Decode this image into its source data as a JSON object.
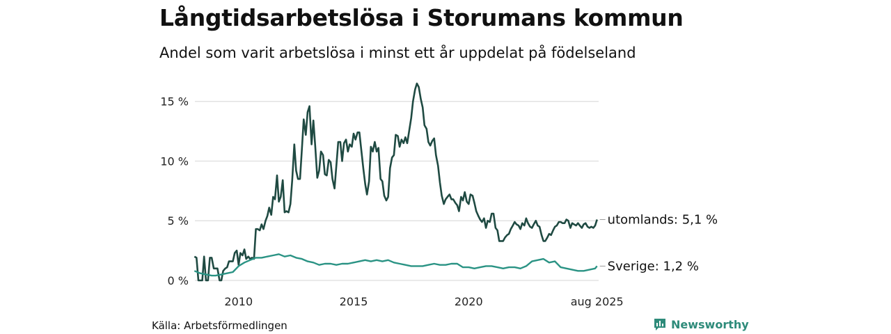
{
  "title": "Långtidsarbetslösa i Storumans kommun",
  "subtitle": "Andel som varit arbetslösa i minst ett år uppdelat på födelseland",
  "source": "Källa: Arbetsförmedlingen",
  "brand": "Newsworthy",
  "colors": {
    "utomlands": "#1f4a42",
    "sverige": "#2a9384",
    "grid": "#dddddd",
    "brand": "#2e8b7a"
  },
  "chart_data": {
    "type": "line",
    "xlim": [
      2008.1,
      2025.65
    ],
    "ylim": [
      0,
      16.5
    ],
    "y_ticks": [
      {
        "value": 0,
        "label": "0 %"
      },
      {
        "value": 5,
        "label": "5 %"
      },
      {
        "value": 10,
        "label": "10 %"
      },
      {
        "value": 15,
        "label": "15 %"
      }
    ],
    "x_ticks": [
      {
        "value": 2010,
        "label": "2010"
      },
      {
        "value": 2015,
        "label": "2015"
      },
      {
        "value": 2020,
        "label": "2020"
      },
      {
        "value": 2025.58,
        "label": "aug 2025"
      }
    ],
    "series": [
      {
        "name": "utomlands",
        "end_label": "utomlands: 5,1 %",
        "points": [
          [
            2008.08,
            2.0
          ],
          [
            2008.17,
            1.9
          ],
          [
            2008.25,
            0.0
          ],
          [
            2008.33,
            0.0
          ],
          [
            2008.42,
            0.0
          ],
          [
            2008.5,
            2.0
          ],
          [
            2008.58,
            0.0
          ],
          [
            2008.67,
            0.0
          ],
          [
            2008.75,
            1.9
          ],
          [
            2008.83,
            1.9
          ],
          [
            2008.92,
            1.0
          ],
          [
            2009.0,
            1.0
          ],
          [
            2009.08,
            1.0
          ],
          [
            2009.17,
            0.0
          ],
          [
            2009.25,
            0.0
          ],
          [
            2009.33,
            0.8
          ],
          [
            2009.42,
            1.0
          ],
          [
            2009.5,
            1.1
          ],
          [
            2009.58,
            1.6
          ],
          [
            2009.67,
            1.6
          ],
          [
            2009.75,
            1.6
          ],
          [
            2009.83,
            2.3
          ],
          [
            2009.92,
            2.5
          ],
          [
            2010.0,
            1.3
          ],
          [
            2010.08,
            2.3
          ],
          [
            2010.17,
            2.1
          ],
          [
            2010.25,
            2.6
          ],
          [
            2010.33,
            1.8
          ],
          [
            2010.42,
            2.0
          ],
          [
            2010.5,
            1.8
          ],
          [
            2010.58,
            1.9
          ],
          [
            2010.67,
            1.8
          ],
          [
            2010.75,
            4.3
          ],
          [
            2010.83,
            4.3
          ],
          [
            2010.92,
            4.2
          ],
          [
            2011.0,
            4.7
          ],
          [
            2011.08,
            4.3
          ],
          [
            2011.17,
            5.0
          ],
          [
            2011.25,
            5.4
          ],
          [
            2011.33,
            6.1
          ],
          [
            2011.42,
            5.5
          ],
          [
            2011.5,
            7.0
          ],
          [
            2011.58,
            6.8
          ],
          [
            2011.67,
            8.8
          ],
          [
            2011.75,
            6.6
          ],
          [
            2011.83,
            7.0
          ],
          [
            2011.92,
            8.4
          ],
          [
            2012.0,
            5.7
          ],
          [
            2012.08,
            5.8
          ],
          [
            2012.17,
            5.7
          ],
          [
            2012.25,
            6.4
          ],
          [
            2012.33,
            8.4
          ],
          [
            2012.42,
            11.4
          ],
          [
            2012.5,
            9.2
          ],
          [
            2012.58,
            8.5
          ],
          [
            2012.67,
            8.5
          ],
          [
            2012.75,
            11.0
          ],
          [
            2012.83,
            13.5
          ],
          [
            2012.92,
            12.2
          ],
          [
            2013.0,
            14.1
          ],
          [
            2013.08,
            14.6
          ],
          [
            2013.17,
            11.4
          ],
          [
            2013.25,
            13.4
          ],
          [
            2013.33,
            11.3
          ],
          [
            2013.42,
            8.6
          ],
          [
            2013.5,
            9.2
          ],
          [
            2013.58,
            10.8
          ],
          [
            2013.67,
            10.5
          ],
          [
            2013.75,
            8.9
          ],
          [
            2013.83,
            8.8
          ],
          [
            2013.92,
            10.1
          ],
          [
            2014.0,
            9.9
          ],
          [
            2014.08,
            8.5
          ],
          [
            2014.17,
            7.7
          ],
          [
            2014.25,
            9.6
          ],
          [
            2014.33,
            11.6
          ],
          [
            2014.42,
            11.6
          ],
          [
            2014.5,
            10.0
          ],
          [
            2014.58,
            11.5
          ],
          [
            2014.67,
            11.8
          ],
          [
            2014.75,
            10.8
          ],
          [
            2014.83,
            11.4
          ],
          [
            2014.92,
            11.2
          ],
          [
            2015.0,
            12.3
          ],
          [
            2015.08,
            11.8
          ],
          [
            2015.17,
            12.4
          ],
          [
            2015.25,
            12.4
          ],
          [
            2015.33,
            11.0
          ],
          [
            2015.42,
            9.4
          ],
          [
            2015.5,
            8.1
          ],
          [
            2015.58,
            7.2
          ],
          [
            2015.67,
            8.3
          ],
          [
            2015.75,
            11.2
          ],
          [
            2015.83,
            10.8
          ],
          [
            2015.92,
            11.6
          ],
          [
            2016.0,
            10.8
          ],
          [
            2016.08,
            11.1
          ],
          [
            2016.17,
            8.5
          ],
          [
            2016.25,
            8.3
          ],
          [
            2016.33,
            7.1
          ],
          [
            2016.42,
            6.7
          ],
          [
            2016.5,
            7.0
          ],
          [
            2016.58,
            9.4
          ],
          [
            2016.67,
            10.3
          ],
          [
            2016.75,
            10.5
          ],
          [
            2016.83,
            12.2
          ],
          [
            2016.92,
            12.1
          ],
          [
            2017.0,
            11.2
          ],
          [
            2017.08,
            11.8
          ],
          [
            2017.17,
            11.5
          ],
          [
            2017.25,
            12.0
          ],
          [
            2017.33,
            11.5
          ],
          [
            2017.42,
            12.6
          ],
          [
            2017.5,
            13.6
          ],
          [
            2017.58,
            15.0
          ],
          [
            2017.67,
            16.0
          ],
          [
            2017.75,
            16.5
          ],
          [
            2017.83,
            16.2
          ],
          [
            2017.92,
            15.2
          ],
          [
            2018.0,
            14.5
          ],
          [
            2018.08,
            13.0
          ],
          [
            2018.17,
            12.7
          ],
          [
            2018.25,
            11.6
          ],
          [
            2018.33,
            11.3
          ],
          [
            2018.42,
            11.7
          ],
          [
            2018.5,
            11.9
          ],
          [
            2018.58,
            10.5
          ],
          [
            2018.67,
            9.6
          ],
          [
            2018.75,
            8.2
          ],
          [
            2018.83,
            7.1
          ],
          [
            2018.92,
            6.4
          ],
          [
            2019.0,
            6.8
          ],
          [
            2019.08,
            7.0
          ],
          [
            2019.17,
            7.2
          ],
          [
            2019.25,
            6.8
          ],
          [
            2019.33,
            6.8
          ],
          [
            2019.42,
            6.5
          ],
          [
            2019.5,
            6.3
          ],
          [
            2019.58,
            5.8
          ],
          [
            2019.67,
            7.0
          ],
          [
            2019.75,
            6.7
          ],
          [
            2019.83,
            7.4
          ],
          [
            2019.92,
            6.6
          ],
          [
            2020.0,
            6.4
          ],
          [
            2020.08,
            7.2
          ],
          [
            2020.17,
            7.1
          ],
          [
            2020.25,
            6.5
          ],
          [
            2020.33,
            5.8
          ],
          [
            2020.42,
            5.4
          ],
          [
            2020.5,
            5.1
          ],
          [
            2020.58,
            4.9
          ],
          [
            2020.67,
            5.2
          ],
          [
            2020.75,
            4.4
          ],
          [
            2020.83,
            5.0
          ],
          [
            2020.92,
            4.9
          ],
          [
            2021.0,
            5.6
          ],
          [
            2021.08,
            5.6
          ],
          [
            2021.17,
            4.4
          ],
          [
            2021.25,
            4.2
          ],
          [
            2021.33,
            3.3
          ],
          [
            2021.42,
            3.3
          ],
          [
            2021.5,
            3.3
          ],
          [
            2021.58,
            3.6
          ],
          [
            2021.67,
            3.8
          ],
          [
            2021.75,
            3.9
          ],
          [
            2021.83,
            4.3
          ],
          [
            2021.92,
            4.6
          ],
          [
            2022.0,
            4.9
          ],
          [
            2022.08,
            4.7
          ],
          [
            2022.17,
            4.6
          ],
          [
            2022.25,
            4.3
          ],
          [
            2022.33,
            4.8
          ],
          [
            2022.42,
            4.6
          ],
          [
            2022.5,
            5.2
          ],
          [
            2022.58,
            4.8
          ],
          [
            2022.67,
            4.5
          ],
          [
            2022.75,
            4.4
          ],
          [
            2022.83,
            4.7
          ],
          [
            2022.92,
            5.0
          ],
          [
            2023.0,
            4.6
          ],
          [
            2023.08,
            4.5
          ],
          [
            2023.17,
            3.8
          ],
          [
            2023.25,
            3.3
          ],
          [
            2023.33,
            3.3
          ],
          [
            2023.42,
            3.6
          ],
          [
            2023.5,
            3.9
          ],
          [
            2023.58,
            3.8
          ],
          [
            2023.67,
            4.2
          ],
          [
            2023.75,
            4.5
          ],
          [
            2023.83,
            4.6
          ],
          [
            2023.92,
            4.9
          ],
          [
            2024.0,
            4.9
          ],
          [
            2024.08,
            4.8
          ],
          [
            2024.17,
            4.8
          ],
          [
            2024.25,
            5.1
          ],
          [
            2024.33,
            5.0
          ],
          [
            2024.42,
            4.4
          ],
          [
            2024.5,
            4.8
          ],
          [
            2024.58,
            4.7
          ],
          [
            2024.67,
            4.6
          ],
          [
            2024.75,
            4.8
          ],
          [
            2024.83,
            4.6
          ],
          [
            2024.92,
            4.4
          ],
          [
            2025.0,
            4.7
          ],
          [
            2025.08,
            4.8
          ],
          [
            2025.17,
            4.5
          ],
          [
            2025.25,
            4.4
          ],
          [
            2025.33,
            4.5
          ],
          [
            2025.42,
            4.4
          ],
          [
            2025.5,
            4.6
          ],
          [
            2025.58,
            5.1
          ]
        ]
      },
      {
        "name": "Sverige",
        "end_label": "Sverige: 1,2 %",
        "points": [
          [
            2008.08,
            0.8
          ],
          [
            2008.33,
            0.6
          ],
          [
            2008.58,
            0.5
          ],
          [
            2008.83,
            0.4
          ],
          [
            2009.0,
            0.4
          ],
          [
            2009.25,
            0.5
          ],
          [
            2009.5,
            0.6
          ],
          [
            2009.75,
            0.7
          ],
          [
            2010.0,
            1.2
          ],
          [
            2010.25,
            1.5
          ],
          [
            2010.5,
            1.7
          ],
          [
            2010.75,
            1.9
          ],
          [
            2011.0,
            1.9
          ],
          [
            2011.25,
            2.0
          ],
          [
            2011.5,
            2.1
          ],
          [
            2011.75,
            2.2
          ],
          [
            2012.0,
            2.0
          ],
          [
            2012.25,
            2.1
          ],
          [
            2012.5,
            1.9
          ],
          [
            2012.75,
            1.8
          ],
          [
            2013.0,
            1.6
          ],
          [
            2013.25,
            1.5
          ],
          [
            2013.5,
            1.3
          ],
          [
            2013.75,
            1.4
          ],
          [
            2014.0,
            1.4
          ],
          [
            2014.25,
            1.3
          ],
          [
            2014.5,
            1.4
          ],
          [
            2014.75,
            1.4
          ],
          [
            2015.0,
            1.5
          ],
          [
            2015.25,
            1.6
          ],
          [
            2015.5,
            1.7
          ],
          [
            2015.75,
            1.6
          ],
          [
            2016.0,
            1.7
          ],
          [
            2016.25,
            1.6
          ],
          [
            2016.5,
            1.7
          ],
          [
            2016.75,
            1.5
          ],
          [
            2017.0,
            1.4
          ],
          [
            2017.25,
            1.3
          ],
          [
            2017.5,
            1.2
          ],
          [
            2017.75,
            1.2
          ],
          [
            2018.0,
            1.2
          ],
          [
            2018.25,
            1.3
          ],
          [
            2018.5,
            1.4
          ],
          [
            2018.75,
            1.3
          ],
          [
            2019.0,
            1.3
          ],
          [
            2019.25,
            1.4
          ],
          [
            2019.5,
            1.4
          ],
          [
            2019.75,
            1.1
          ],
          [
            2020.0,
            1.1
          ],
          [
            2020.25,
            1.0
          ],
          [
            2020.5,
            1.1
          ],
          [
            2020.75,
            1.2
          ],
          [
            2021.0,
            1.2
          ],
          [
            2021.25,
            1.1
          ],
          [
            2021.5,
            1.0
          ],
          [
            2021.75,
            1.1
          ],
          [
            2022.0,
            1.1
          ],
          [
            2022.25,
            1.0
          ],
          [
            2022.5,
            1.2
          ],
          [
            2022.75,
            1.6
          ],
          [
            2023.0,
            1.7
          ],
          [
            2023.25,
            1.8
          ],
          [
            2023.5,
            1.5
          ],
          [
            2023.75,
            1.6
          ],
          [
            2024.0,
            1.1
          ],
          [
            2024.25,
            1.0
          ],
          [
            2024.5,
            0.9
          ],
          [
            2024.75,
            0.8
          ],
          [
            2025.0,
            0.8
          ],
          [
            2025.25,
            0.9
          ],
          [
            2025.5,
            1.0
          ],
          [
            2025.58,
            1.2
          ]
        ]
      }
    ]
  }
}
